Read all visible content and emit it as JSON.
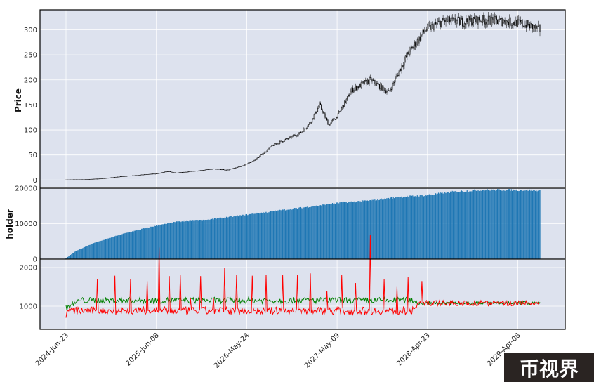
{
  "chart_data": [
    {
      "panel": "price",
      "type": "candlestick",
      "ylabel": "Price",
      "ylim": [
        -15,
        340
      ],
      "yticks": [
        "0",
        "50",
        "100",
        "150",
        "200",
        "250",
        "300"
      ],
      "ytick_values": [
        0,
        50,
        100,
        150,
        200,
        250,
        300
      ],
      "grid": true,
      "trend_keypoints": {
        "index": [
          0,
          20,
          40,
          60,
          80,
          100,
          110,
          120,
          140,
          160,
          175,
          190,
          205,
          215,
          225,
          240,
          255,
          265,
          275,
          285,
          295,
          310,
          330,
          350,
          370,
          390,
          410,
          430,
          450,
          465,
          480,
          500,
          514
        ],
        "close": [
          0.5,
          1,
          3,
          7,
          10,
          13,
          17,
          14,
          18,
          22,
          20,
          27,
          40,
          55,
          70,
          82,
          95,
          115,
          150,
          110,
          130,
          180,
          200,
          175,
          250,
          300,
          318,
          316,
          320,
          318,
          316,
          310,
          300
        ]
      }
    },
    {
      "panel": "holder",
      "type": "bar",
      "ylabel": "holder",
      "ylim": [
        0,
        20000
      ],
      "yticks": [
        "0",
        "10000",
        "20000"
      ],
      "ytick_values": [
        0,
        10000,
        20000
      ],
      "color": "#1f77b4",
      "trend_keypoints": {
        "index": [
          0,
          10,
          30,
          60,
          90,
          120,
          150,
          180,
          210,
          240,
          270,
          300,
          330,
          360,
          390,
          420,
          450,
          480,
          514
        ],
        "holders": [
          200,
          2200,
          4500,
          7000,
          9000,
          10500,
          11000,
          12000,
          13000,
          14000,
          15000,
          16000,
          16500,
          17500,
          18000,
          19000,
          19500,
          19500,
          19400
        ]
      }
    },
    {
      "panel": "activity",
      "type": "line",
      "ylabel": "",
      "ylim": [
        400,
        2200
      ],
      "yticks": [
        "1000",
        "2000"
      ],
      "ytick_values": [
        1000,
        2000
      ],
      "series": [
        {
          "name": "green",
          "color": "#008000",
          "baseline": 1150
        },
        {
          "name": "red",
          "color": "#ff0000",
          "baseline": 880,
          "spike_index": [
            34,
            53,
            70,
            88,
            101,
            112,
            124,
            135,
            146,
            160,
            172,
            185,
            202,
            217,
            235,
            251,
            265,
            283,
            299,
            314,
            330,
            345,
            359,
            371,
            386
          ],
          "spike_value": [
            1700,
            1790,
            1700,
            1650,
            2520,
            1780,
            1800,
            1200,
            1780,
            1200,
            2000,
            1800,
            1790,
            1810,
            1800,
            1800,
            1850,
            1400,
            1800,
            1600,
            2850,
            1700,
            1500,
            1750,
            1650
          ]
        }
      ]
    }
  ],
  "x_axis": {
    "num_points": 515,
    "ticks": [
      "2024-Jun-23",
      "2025-Jun-08",
      "2026-May-24",
      "2027-May-09",
      "2028-Apr-23",
      "2029-Apr-08"
    ],
    "tick_index": [
      0,
      98,
      196,
      294,
      392,
      490
    ]
  },
  "watermark": {
    "text": "币视界"
  }
}
